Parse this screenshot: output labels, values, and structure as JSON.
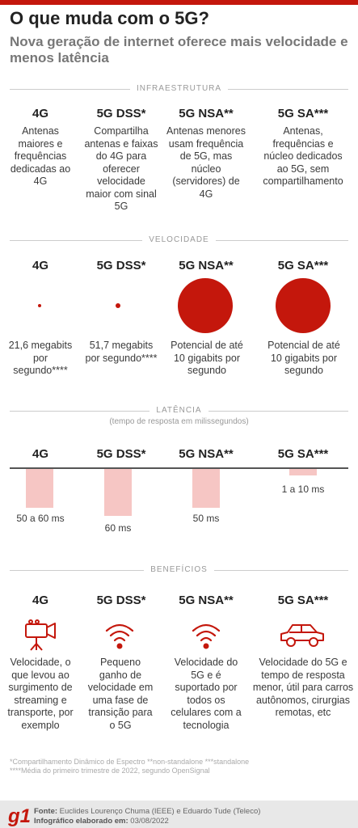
{
  "header": {
    "title": "O que muda com o 5G?",
    "subtitle": "Nova geração de internet oferece mais velocidade e menos latência"
  },
  "columns": [
    "4G",
    "5G DSS*",
    "5G NSA**",
    "5G SA***"
  ],
  "infraestrutura": {
    "label": "INFRAESTRUTURA",
    "texts": [
      "Antenas maiores e frequências dedicadas ao 4G",
      "Compartilha antenas e faixas do 4G para oferecer velocidade maior com sinal 5G",
      "Antenas menores usam frequência de 5G, mas núcleo (servidores) de 4G",
      "Antenas, frequências e núcleo dedicados ao 5G, sem compartilhamento"
    ]
  },
  "velocidade": {
    "label": "VELOCIDADE",
    "texts": [
      "21,6 megabits por segundo****",
      "51,7 megabits por segundo****",
      "Potencial de até 10 gigabits por segundo",
      "Potencial de até 10 gigabits por segundo"
    ],
    "dot_color": "#c4170c"
  },
  "latencia": {
    "label": "LATÊNCIA",
    "sublabel": "(tempo de resposta em milissegundos)",
    "values": [
      "50 a 60 ms",
      "60 ms",
      "50 ms",
      "1 a 10 ms"
    ],
    "bar_color": "#f6c6c4"
  },
  "beneficios": {
    "label": "BENEFÍCIOS",
    "icons": [
      "video-camera-icon",
      "wifi-signal-icon",
      "wifi-signal-icon",
      "car-icon"
    ],
    "texts": [
      "Velocidade, o que levou ao surgimento de streaming e transporte, por exemplo",
      "Pequeno ganho de velocidade em uma fase de transição para o 5G",
      "Velocidade do 5G e é suportado por todos os celulares com a tecnologia",
      "Velocidade do 5G e tempo de resposta menor, útil para carros autônomos, cirurgias remotas, etc"
    ]
  },
  "footnotes": {
    "line1": "*Compartilhamento Dinâmico de Espectro **non-standalone ***standalone",
    "line2": "****Média do primeiro trimestre de 2022, segundo OpenSignal"
  },
  "footer": {
    "logo": "g1",
    "fonte_label": "Fonte:",
    "fonte": "Euclides Lourenço Chuma (IEEE) e Eduardo Tude (Teleco)",
    "elaborado_label": "Infográfico elaborado em:",
    "elaborado": "03/08/2022"
  },
  "accent_color": "#c4170c"
}
